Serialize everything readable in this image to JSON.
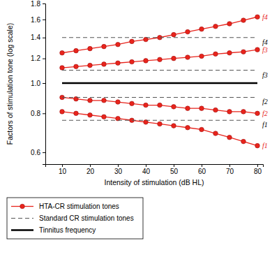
{
  "chart_data": {
    "type": "line",
    "x_label": "Intensity of stimulation (dB HL)",
    "y_label": "Factors of stimulation tone (log scale)",
    "log": "y",
    "grid": false,
    "legend": "bottom-left",
    "x": [
      10,
      15,
      20,
      25,
      30,
      35,
      40,
      45,
      50,
      55,
      60,
      65,
      70,
      75,
      80
    ],
    "xlim": [
      4,
      82
    ],
    "xticks": [
      10,
      20,
      30,
      40,
      50,
      60,
      70,
      80
    ],
    "ylim": [
      0.55,
      1.8
    ],
    "yticks": [
      0.6,
      0.8,
      {
        "value": 1,
        "label": "1.0"
      },
      1.2,
      1.4,
      1.6,
      1.8
    ],
    "series": [
      {
        "name": "HTA-CR stimulation tones",
        "color": "#e8241c",
        "marker": "circle",
        "line_style": "solid",
        "lines": [
          {
            "label": "f4",
            "values": [
              1.25,
              1.27,
              1.29,
              1.31,
              1.33,
              1.36,
              1.38,
              1.4,
              1.43,
              1.46,
              1.49,
              1.52,
              1.55,
              1.59,
              1.63
            ]
          },
          {
            "label": "f3",
            "values": [
              1.12,
              1.13,
              1.14,
              1.15,
              1.16,
              1.17,
              1.18,
              1.19,
              1.2,
              1.21,
              1.22,
              1.24,
              1.25,
              1.26,
              1.28
            ]
          },
          {
            "label": "f2",
            "values": [
              0.9,
              0.89,
              0.88,
              0.88,
              0.87,
              0.86,
              0.85,
              0.85,
              0.84,
              0.83,
              0.83,
              0.82,
              0.81,
              0.81,
              0.8
            ]
          },
          {
            "label": "f1",
            "values": [
              0.81,
              0.8,
              0.79,
              0.78,
              0.77,
              0.76,
              0.75,
              0.74,
              0.73,
              0.72,
              0.71,
              0.69,
              0.67,
              0.65,
              0.63
            ]
          }
        ]
      },
      {
        "name": "Standard CR stimulation tones",
        "color": "#555555",
        "marker": "none",
        "line_style": "dashed",
        "lines": [
          {
            "label": "f4",
            "values": [
              1.4,
              1.4,
              1.4,
              1.4,
              1.4,
              1.4,
              1.4,
              1.4,
              1.4,
              1.4,
              1.4,
              1.4,
              1.4,
              1.4,
              1.4
            ]
          },
          {
            "label": "f3",
            "values": [
              1.1,
              1.1,
              1.1,
              1.1,
              1.1,
              1.1,
              1.1,
              1.1,
              1.1,
              1.1,
              1.1,
              1.1,
              1.1,
              1.1,
              1.1
            ]
          },
          {
            "label": "f2",
            "values": [
              0.9,
              0.9,
              0.9,
              0.9,
              0.9,
              0.9,
              0.9,
              0.9,
              0.9,
              0.9,
              0.9,
              0.9,
              0.9,
              0.9,
              0.9
            ]
          },
          {
            "label": "f1",
            "values": [
              0.76,
              0.76,
              0.76,
              0.76,
              0.76,
              0.76,
              0.76,
              0.76,
              0.76,
              0.76,
              0.76,
              0.76,
              0.76,
              0.76,
              0.76
            ]
          }
        ]
      },
      {
        "name": "Tinnitus frequency",
        "color": "#000000",
        "marker": "none",
        "line_style": "solid",
        "values": [
          1,
          1,
          1,
          1,
          1,
          1,
          1,
          1,
          1,
          1,
          1,
          1,
          1,
          1,
          1
        ]
      }
    ]
  }
}
